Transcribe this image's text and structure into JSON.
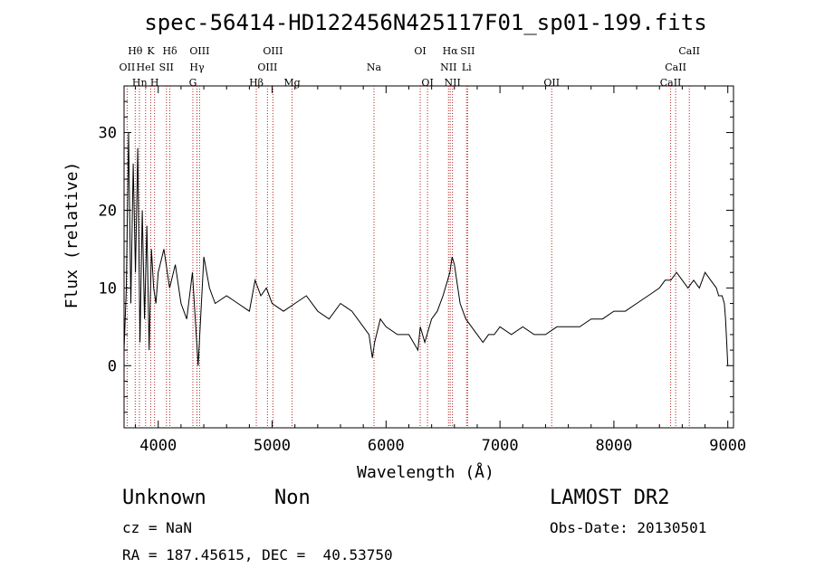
{
  "chart_data": {
    "type": "line",
    "title": "spec-56414-HD122456N425117F01_sp01-199.fits",
    "xlabel": "Wavelength (Å)",
    "ylabel": "Flux (relative)",
    "xlim": [
      3700,
      9050
    ],
    "ylim": [
      -8,
      36
    ],
    "xticks": [
      4000,
      5000,
      6000,
      7000,
      8000,
      9000
    ],
    "yticks": [
      0,
      10,
      20,
      30
    ],
    "grid": false,
    "series": [
      {
        "x": [
          3700,
          3720,
          3740,
          3760,
          3780,
          3800,
          3820,
          3840,
          3860,
          3880,
          3900,
          3920,
          3940,
          3960,
          3980,
          4000,
          4050,
          4100,
          4150,
          4200,
          4250,
          4300,
          4350,
          4400,
          4450,
          4500,
          4600,
          4700,
          4800,
          4850,
          4900,
          4950,
          5000,
          5100,
          5200,
          5300,
          5400,
          5500,
          5600,
          5700,
          5800,
          5850,
          5880,
          5900,
          5950,
          6000,
          6100,
          6200,
          6280,
          6300,
          6340,
          6400,
          6450,
          6500,
          6540,
          6560,
          6580,
          6600,
          6620,
          6650,
          6700,
          6750,
          6800,
          6850,
          6900,
          6950,
          7000,
          7100,
          7200,
          7300,
          7400,
          7500,
          7600,
          7700,
          7800,
          7900,
          8000,
          8100,
          8200,
          8300,
          8400,
          8450,
          8500,
          8550,
          8600,
          8650,
          8700,
          8750,
          8800,
          8850,
          8900,
          8920,
          8950,
          8970,
          8980,
          8990,
          9000
        ],
        "y": [
          2,
          10,
          30,
          8,
          26,
          12,
          28,
          3,
          20,
          6,
          18,
          2,
          15,
          10,
          8,
          12,
          15,
          10,
          13,
          8,
          6,
          12,
          0,
          14,
          10,
          8,
          9,
          8,
          7,
          11,
          9,
          10,
          8,
          7,
          8,
          9,
          7,
          6,
          8,
          7,
          5,
          4,
          1,
          3,
          6,
          5,
          4,
          4,
          2,
          5,
          3,
          6,
          7,
          9,
          11,
          12,
          14,
          13,
          11,
          8,
          6,
          5,
          4,
          3,
          4,
          4,
          5,
          4,
          5,
          4,
          4,
          5,
          5,
          5,
          6,
          6,
          7,
          7,
          8,
          9,
          10,
          11,
          11,
          12,
          11,
          10,
          11,
          10,
          12,
          11,
          10,
          9,
          9,
          8,
          6,
          3,
          0
        ]
      }
    ],
    "line_markers": [
      {
        "label": "OII",
        "x": 3727,
        "row": 1
      },
      {
        "label": "Hθ",
        "x": 3798,
        "row": 0
      },
      {
        "label": "Hη",
        "x": 3835,
        "row": 2
      },
      {
        "label": "HeI",
        "x": 3889,
        "row": 1
      },
      {
        "label": "K",
        "x": 3934,
        "row": 0
      },
      {
        "label": "H",
        "x": 3968,
        "row": 2
      },
      {
        "label": "SII",
        "x": 4072,
        "row": 1
      },
      {
        "label": "Hδ",
        "x": 4102,
        "row": 0
      },
      {
        "label": "G",
        "x": 4304,
        "row": 2
      },
      {
        "label": "Hγ",
        "x": 4340,
        "row": 1
      },
      {
        "label": "OIII",
        "x": 4363,
        "row": 0
      },
      {
        "label": "Hβ",
        "x": 4861,
        "row": 2
      },
      {
        "label": "OIII",
        "x": 4959,
        "row": 1
      },
      {
        "label": "OIII",
        "x": 5007,
        "row": 0
      },
      {
        "label": "Mg",
        "x": 5175,
        "row": 2
      },
      {
        "label": "Na",
        "x": 5894,
        "row": 1
      },
      {
        "label": "OI",
        "x": 6300,
        "row": 0
      },
      {
        "label": "OI",
        "x": 6364,
        "row": 2
      },
      {
        "label": "NII",
        "x": 6548,
        "row": 1
      },
      {
        "label": "Hα",
        "x": 6563,
        "row": 0
      },
      {
        "label": "NII",
        "x": 6583,
        "row": 2
      },
      {
        "label": "Li",
        "x": 6707,
        "row": 1
      },
      {
        "label": "SII",
        "x": 6716,
        "row": 0
      },
      {
        "label": "OII",
        "x": 7454,
        "row": 2
      },
      {
        "label": "CaII",
        "x": 8498,
        "row": 2
      },
      {
        "label": "CaII",
        "x": 8542,
        "row": 1
      },
      {
        "label": "CaII",
        "x": 8662,
        "row": 0
      }
    ]
  },
  "info": {
    "object_class": "Unknown",
    "object_subclass": "Non",
    "survey": "LAMOST DR2",
    "cz": "cz = NaN",
    "obs_date": "Obs-Date: 20130501",
    "coords": "RA = 187.45615, DEC =  40.53750"
  }
}
